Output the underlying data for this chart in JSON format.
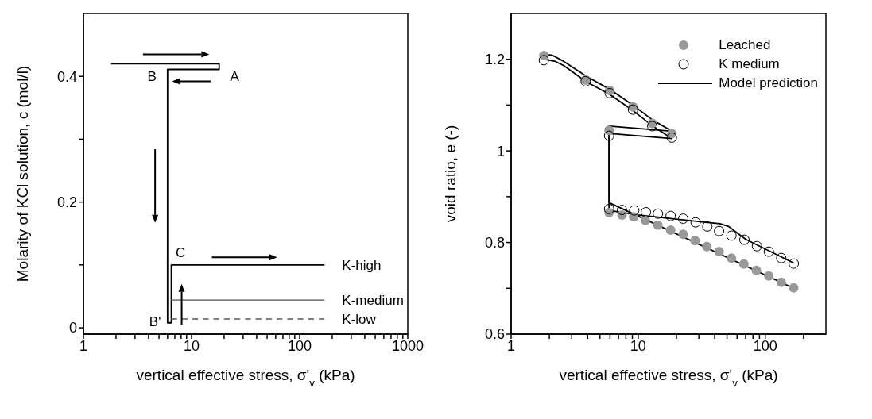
{
  "chart_data": [
    {
      "type": "line",
      "xlabel": "vertical effective stress, σ'$_{v}$ (kPa)",
      "ylabel": "Molarity of KCl solution, c (mol/l)",
      "log": "x",
      "xlim": [
        1,
        1000
      ],
      "xticks": [
        1,
        {
          "value": 2,
          "label": null
        },
        {
          "value": 3,
          "label": null
        },
        {
          "value": 4,
          "label": null
        },
        {
          "value": 5,
          "label": null
        },
        {
          "value": 6,
          "label": null
        },
        {
          "value": 7,
          "label": null
        },
        {
          "value": 8,
          "label": null
        },
        {
          "value": 9,
          "label": null
        },
        10,
        {
          "value": 20,
          "label": null
        },
        {
          "value": 30,
          "label": null
        },
        {
          "value": 40,
          "label": null
        },
        {
          "value": 50,
          "label": null
        },
        {
          "value": 60,
          "label": null
        },
        {
          "value": 70,
          "label": null
        },
        {
          "value": 80,
          "label": null
        },
        {
          "value": 90,
          "label": null
        },
        100,
        {
          "value": 200,
          "label": null
        },
        {
          "value": 300,
          "label": null
        },
        {
          "value": 400,
          "label": null
        },
        {
          "value": 500,
          "label": null
        },
        {
          "value": 600,
          "label": null
        },
        {
          "value": 700,
          "label": null
        },
        {
          "value": 800,
          "label": null
        },
        {
          "value": 900,
          "label": null
        },
        1000
      ],
      "ylim": [
        -0.01,
        0.5
      ],
      "yticks": [
        0,
        {
          "value": 0.1,
          "label": null
        },
        0.2,
        {
          "value": 0.3,
          "label": null
        },
        0.4
      ],
      "annotations": [
        "A",
        "B",
        "C",
        "B'"
      ],
      "series": [
        {
          "name": "K-high",
          "color": "#000000",
          "x": [
            1.8,
            18,
            18,
            6,
            6,
            6.5,
            6.5,
            170
          ],
          "values": [
            0.42,
            0.42,
            0.411,
            0.411,
            0.008,
            0.008,
            0.1,
            0.1
          ]
        },
        {
          "name": "K-medium",
          "color": "#808080",
          "x": [
            6.5,
            170
          ],
          "values": [
            0.044,
            0.044
          ]
        },
        {
          "name": "K-low",
          "color": "#808080",
          "line_style": "dashed",
          "x": [
            6.5,
            170
          ],
          "values": [
            0.014,
            0.014
          ]
        }
      ]
    },
    {
      "type": "scatter",
      "xlabel": "vertical effective stress, σ'$_{v}$ (kPa)",
      "ylabel": "void ratio, e (-)",
      "log": "x",
      "xlim": [
        1,
        300
      ],
      "legend": "top right",
      "xticks": [
        1,
        {
          "value": 2,
          "label": null
        },
        {
          "value": 3,
          "label": null
        },
        {
          "value": 4,
          "label": null
        },
        {
          "value": 5,
          "label": null
        },
        {
          "value": 6,
          "label": null
        },
        {
          "value": 7,
          "label": null
        },
        {
          "value": 8,
          "label": null
        },
        {
          "value": 9,
          "label": null
        },
        10,
        {
          "value": 20,
          "label": null
        },
        {
          "value": 30,
          "label": null
        },
        {
          "value": 40,
          "label": null
        },
        {
          "value": 50,
          "label": null
        },
        {
          "value": 60,
          "label": null
        },
        {
          "value": 70,
          "label": null
        },
        {
          "value": 80,
          "label": null
        },
        {
          "value": 90,
          "label": null
        },
        100,
        {
          "value": 200,
          "label": null
        }
      ],
      "ylim": [
        0.6,
        1.3
      ],
      "yticks": [
        0.6,
        {
          "value": 0.7,
          "label": null
        },
        0.8,
        {
          "value": 0.9,
          "label": null
        },
        1,
        {
          "value": 1.1,
          "label": null
        },
        1.2
      ],
      "series": [
        {
          "name": "Leached",
          "marker": "circle",
          "color": "#999999",
          "x": [
            1.81,
            3.86,
            5.97,
            9.1,
            12.9,
            18.4,
            5.9,
            5.9,
            7.45,
            9.2,
            11.4,
            14.3,
            18,
            22.6,
            28,
            34.7,
            43.3,
            54.2,
            67.9,
            85,
            106.6,
            133.6,
            167.6
          ],
          "values": [
            1.208,
            1.155,
            1.132,
            1.096,
            1.06,
            1.038,
            1.045,
            0.865,
            0.86,
            0.856,
            0.848,
            0.838,
            0.827,
            0.818,
            0.804,
            0.791,
            0.78,
            0.766,
            0.753,
            0.739,
            0.727,
            0.713,
            0.701
          ]
        },
        {
          "name": "K medium",
          "marker": "circle",
          "color": "#000000",
          "x": [
            1.81,
            3.86,
            5.97,
            9.1,
            12.9,
            18.4,
            5.9,
            5.9,
            7.45,
            9.3,
            11.5,
            14.3,
            18,
            22.6,
            28.3,
            35,
            43.3,
            54.2,
            68.5,
            86,
            106.6,
            133.6,
            167.6
          ],
          "values": [
            1.198,
            1.152,
            1.126,
            1.09,
            1.054,
            1.029,
            1.033,
            0.873,
            0.871,
            0.87,
            0.866,
            0.863,
            0.858,
            0.852,
            0.844,
            0.835,
            0.825,
            0.815,
            0.806,
            0.792,
            0.78,
            0.766,
            0.754
          ]
        },
        {
          "name": "Model prediction",
          "type": "line",
          "marker": "none",
          "color": "#000000",
          "x": [
            1.81,
            2.1,
            2.5,
            3.9,
            6,
            9.1,
            12.9,
            18.4,
            5.9,
            5.9,
            167.6
          ],
          "values": [
            1.21,
            1.209,
            1.198,
            1.163,
            1.134,
            1.1,
            1.068,
            1.043,
            1.054,
            0.887,
            0.7
          ]
        },
        {
          "type": "line",
          "marker": "none",
          "color": "#000000",
          "x": [
            1.81,
            2.2,
            2.6,
            3.9,
            6,
            9.1,
            12.9,
            18.4,
            5.9,
            5.9,
            9.9,
            34,
            44,
            51.5,
            70,
            167.6
          ],
          "values": [
            1.2,
            1.196,
            1.186,
            1.151,
            1.123,
            1.088,
            1.055,
            1.027,
            1.038,
            0.87,
            0.86,
            0.844,
            0.841,
            0.835,
            0.807,
            0.755
          ]
        }
      ]
    }
  ]
}
